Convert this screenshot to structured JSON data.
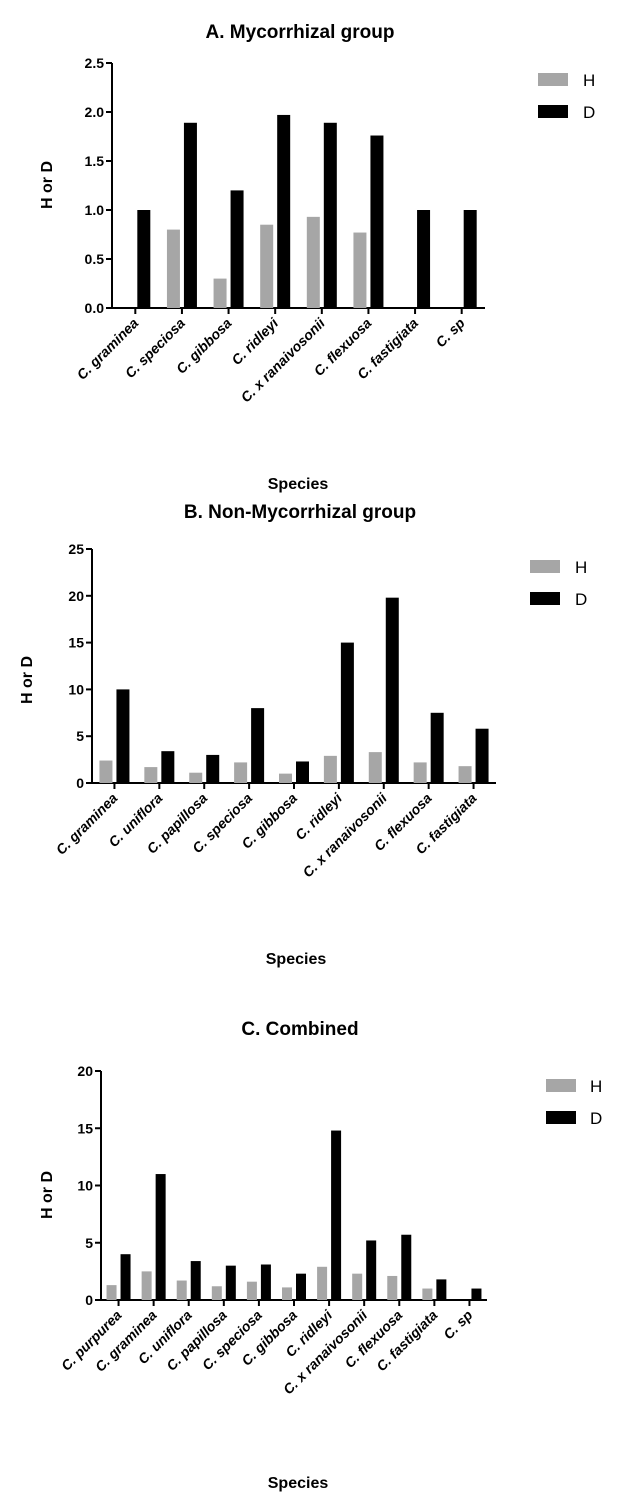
{
  "legend": {
    "h_label": "H",
    "d_label": "D"
  },
  "colors": {
    "H": "#a6a6a6",
    "D": "#000000"
  },
  "chart_data": [
    {
      "type": "bar",
      "title": "A. Mycorrhizal group",
      "xlabel": "Species",
      "ylabel": "H or D",
      "ylim": [
        0,
        2.5
      ],
      "yticks": [
        "0.0",
        "0.5",
        "1.0",
        "1.5",
        "2.0",
        "2.5"
      ],
      "categories": [
        "C. graminea",
        "C. speciosa",
        "C. gibbosa",
        "C. ridleyi",
        "C. x ranaivosonii",
        "C. flexuosa",
        "C. fastigiata",
        "C. sp"
      ],
      "series": [
        {
          "name": "H",
          "values": [
            0,
            0.8,
            0.3,
            0.85,
            0.93,
            0.77,
            0,
            0
          ]
        },
        {
          "name": "D",
          "values": [
            1.0,
            1.89,
            1.2,
            1.97,
            1.89,
            1.76,
            1.0,
            1.0
          ]
        }
      ],
      "legend_position": "top-right"
    },
    {
      "type": "bar",
      "title": "B. Non-Mycorrhizal group",
      "xlabel": "Species",
      "ylabel": "H or D",
      "ylim": [
        0,
        25
      ],
      "yticks": [
        "0",
        "5",
        "10",
        "15",
        "20",
        "25"
      ],
      "categories": [
        "C. graminea",
        "C. uniflora",
        "C. papillosa",
        "C. speciosa",
        "C. gibbosa",
        "C. ridleyi",
        "C. x ranaivosonii",
        "C. flexuosa",
        "C. fastigiata"
      ],
      "series": [
        {
          "name": "H",
          "values": [
            2.4,
            1.7,
            1.1,
            2.2,
            1.0,
            2.9,
            3.3,
            2.2,
            1.8
          ]
        },
        {
          "name": "D",
          "values": [
            10.0,
            3.4,
            3.0,
            8.0,
            2.3,
            15.0,
            19.8,
            7.5,
            5.8
          ]
        }
      ],
      "legend_position": "top-right"
    },
    {
      "type": "bar",
      "title": "C. Combined",
      "xlabel": "Species",
      "ylabel": "H or D",
      "ylim": [
        0,
        20
      ],
      "yticks": [
        "0",
        "5",
        "10",
        "15",
        "20"
      ],
      "categories": [
        "C. purpurea",
        "C. graminea",
        "C. uniflora",
        "C. papillosa",
        "C. speciosa",
        "C. gibbosa",
        "C. ridleyi",
        "C. x ranaivosonii",
        "C. flexuosa",
        "C. fastigiata",
        "C. sp"
      ],
      "series": [
        {
          "name": "H",
          "values": [
            1.3,
            2.5,
            1.7,
            1.2,
            1.6,
            1.1,
            2.9,
            2.3,
            2.1,
            1.0,
            0
          ]
        },
        {
          "name": "D",
          "values": [
            4.0,
            11.0,
            3.4,
            3.0,
            3.1,
            2.3,
            14.8,
            5.2,
            5.7,
            1.8,
            1.0
          ]
        }
      ],
      "legend_position": "top-right"
    }
  ]
}
